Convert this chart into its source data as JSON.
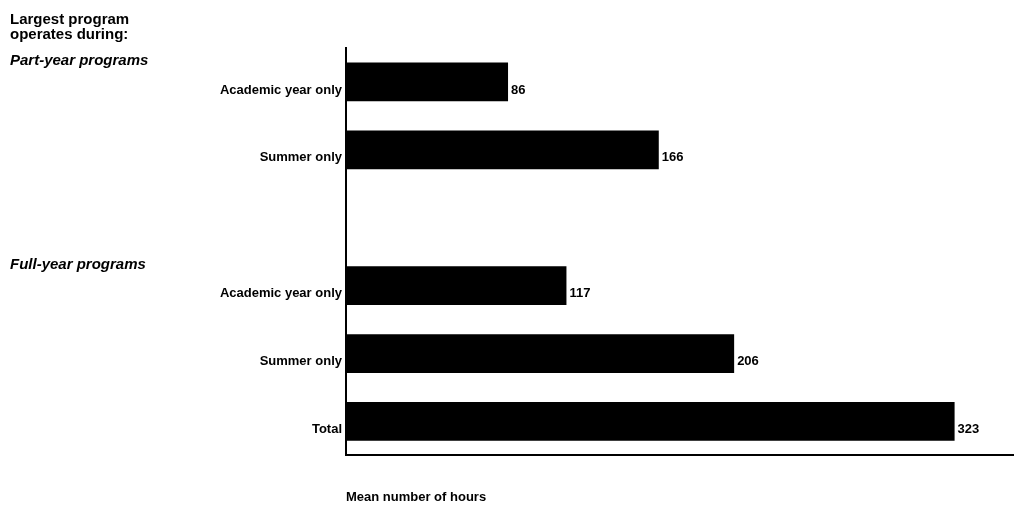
{
  "chart_data": {
    "type": "bar",
    "orientation": "horizontal",
    "title": "Largest program operates during:",
    "xlabel": "Mean number of hours",
    "categories": [
      "Academic year only",
      "Summer only",
      null,
      "Academic year only",
      "Summer only",
      "Total"
    ],
    "values": [
      86,
      166,
      null,
      117,
      206,
      323
    ],
    "color": "#000000",
    "xlim": [
      0,
      354
    ],
    "data_labels": true,
    "tick_labels": "y",
    "grid": false,
    "legend": false,
    "annotations": [
      "Part-year programs",
      "Full-year programs"
    ]
  }
}
